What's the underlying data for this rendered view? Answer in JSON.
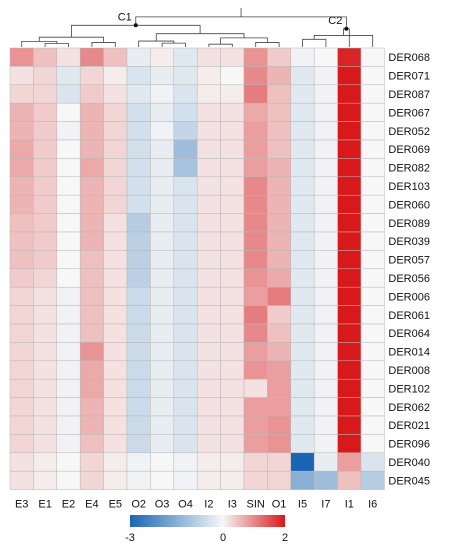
{
  "chart_data": {
    "type": "heatmap",
    "title": "",
    "columns": [
      "E3",
      "E1",
      "E2",
      "E4",
      "E5",
      "O2",
      "O3",
      "O4",
      "I2",
      "I3",
      "SIN",
      "O1",
      "I5",
      "I7",
      "I1",
      "I6"
    ],
    "rows": [
      "DER068",
      "DER071",
      "DER087",
      "DER067",
      "DER052",
      "DER069",
      "DER082",
      "DER103",
      "DER060",
      "DER089",
      "DER039",
      "DER057",
      "DER056",
      "DER006",
      "DER061",
      "DER064",
      "DER014",
      "DER008",
      "DER102",
      "DER062",
      "DER021",
      "DER096",
      "DER040",
      "DER045"
    ],
    "values": [
      [
        0.9,
        0.5,
        0.2,
        1.0,
        0.5,
        -0.2,
        0.1,
        -0.3,
        0.2,
        0.2,
        0.9,
        0.4,
        -0.1,
        0.0,
        1.9,
        0.0
      ],
      [
        0.2,
        0.3,
        -0.3,
        0.3,
        0.1,
        -0.4,
        -0.2,
        -0.3,
        0.1,
        0.0,
        1.0,
        0.6,
        -0.3,
        -0.1,
        2.3,
        0.0
      ],
      [
        0.3,
        0.3,
        -0.4,
        0.4,
        0.2,
        -0.3,
        -0.1,
        -0.4,
        0.1,
        0.1,
        1.1,
        0.5,
        -0.3,
        -0.1,
        2.4,
        0.0
      ],
      [
        0.6,
        0.4,
        0.0,
        0.6,
        0.3,
        -0.5,
        -0.2,
        -0.5,
        0.2,
        0.2,
        0.7,
        0.5,
        -0.3,
        -0.1,
        2.1,
        0.0
      ],
      [
        0.6,
        0.4,
        -0.1,
        0.6,
        0.3,
        -0.5,
        -0.1,
        -0.7,
        0.2,
        0.2,
        0.8,
        0.5,
        -0.3,
        -0.1,
        2.2,
        0.0
      ],
      [
        0.7,
        0.4,
        0.0,
        0.6,
        0.3,
        -0.5,
        -0.2,
        -1.2,
        0.2,
        0.2,
        0.8,
        0.5,
        -0.3,
        -0.1,
        2.2,
        0.0
      ],
      [
        0.7,
        0.4,
        0.0,
        0.7,
        0.3,
        -0.5,
        -0.2,
        -1.1,
        0.2,
        0.2,
        0.8,
        0.6,
        -0.3,
        -0.1,
        2.3,
        0.0
      ],
      [
        0.6,
        0.4,
        0.0,
        0.6,
        0.3,
        -0.5,
        -0.2,
        -0.4,
        0.2,
        0.2,
        1.0,
        0.6,
        -0.3,
        -0.1,
        2.4,
        0.0
      ],
      [
        0.6,
        0.4,
        0.0,
        0.6,
        0.3,
        -0.5,
        -0.2,
        -0.4,
        0.2,
        0.2,
        1.0,
        0.6,
        -0.3,
        -0.1,
        2.4,
        0.0
      ],
      [
        0.5,
        0.4,
        0.0,
        0.6,
        0.2,
        -0.9,
        -0.2,
        -0.4,
        0.2,
        0.2,
        1.0,
        0.6,
        -0.3,
        -0.1,
        2.6,
        0.0
      ],
      [
        0.5,
        0.4,
        0.0,
        0.6,
        0.2,
        -0.8,
        -0.2,
        -0.4,
        0.2,
        0.2,
        1.0,
        0.6,
        -0.3,
        -0.1,
        2.6,
        0.0
      ],
      [
        0.5,
        0.4,
        0.0,
        0.5,
        0.2,
        -0.8,
        -0.2,
        -0.4,
        0.2,
        0.2,
        1.0,
        0.6,
        -0.3,
        -0.1,
        2.6,
        0.0
      ],
      [
        0.4,
        0.3,
        0.0,
        0.5,
        0.2,
        -0.8,
        -0.2,
        -0.4,
        0.2,
        0.2,
        0.9,
        0.7,
        -0.3,
        -0.1,
        2.6,
        0.0
      ],
      [
        0.3,
        0.2,
        -0.1,
        0.5,
        0.2,
        -0.6,
        -0.2,
        -0.4,
        0.2,
        0.2,
        0.8,
        1.1,
        -0.3,
        -0.1,
        2.5,
        0.0
      ],
      [
        0.3,
        0.2,
        -0.1,
        0.5,
        0.2,
        -0.6,
        -0.2,
        -0.4,
        0.2,
        0.2,
        1.1,
        0.4,
        -0.3,
        -0.1,
        2.5,
        0.0
      ],
      [
        0.3,
        0.2,
        -0.1,
        0.5,
        0.2,
        -0.6,
        -0.2,
        -0.4,
        0.2,
        0.2,
        1.0,
        0.5,
        -0.3,
        -0.1,
        2.5,
        0.0
      ],
      [
        0.3,
        0.2,
        -0.1,
        0.9,
        0.2,
        -0.6,
        -0.2,
        -0.4,
        0.2,
        0.2,
        0.8,
        0.6,
        -0.3,
        -0.1,
        2.5,
        0.0
      ],
      [
        0.3,
        0.2,
        -0.1,
        0.7,
        0.2,
        -0.6,
        -0.2,
        -0.4,
        0.2,
        0.2,
        0.9,
        0.8,
        -0.3,
        -0.1,
        2.5,
        0.0
      ],
      [
        0.3,
        0.2,
        -0.1,
        0.7,
        0.2,
        -0.6,
        -0.2,
        -0.4,
        0.2,
        0.2,
        0.2,
        0.8,
        -0.3,
        -0.1,
        2.5,
        0.0
      ],
      [
        0.3,
        0.2,
        -0.1,
        0.6,
        0.2,
        -0.6,
        -0.2,
        -0.4,
        0.2,
        0.2,
        0.8,
        0.8,
        -0.3,
        -0.1,
        2.5,
        0.0
      ],
      [
        0.3,
        0.2,
        -0.1,
        0.6,
        0.2,
        -0.6,
        -0.2,
        -0.4,
        0.2,
        0.2,
        0.8,
        0.9,
        -0.3,
        -0.1,
        2.5,
        0.0
      ],
      [
        0.3,
        0.2,
        -0.1,
        0.5,
        0.2,
        -0.6,
        -0.2,
        -0.4,
        0.2,
        0.2,
        0.8,
        0.9,
        -0.3,
        -0.1,
        2.5,
        0.0
      ],
      [
        0.2,
        0.1,
        0.0,
        0.3,
        0.1,
        -0.1,
        0.0,
        -0.1,
        0.1,
        0.1,
        0.3,
        0.3,
        -3.0,
        -0.2,
        0.8,
        -0.4
      ],
      [
        0.2,
        0.1,
        0.0,
        0.3,
        0.1,
        -0.1,
        0.0,
        -0.1,
        0.1,
        0.1,
        0.3,
        0.3,
        -1.5,
        -1.2,
        0.5,
        -0.9
      ]
    ],
    "color_scale": {
      "min": -3,
      "mid": 0,
      "max": 2,
      "ticks": [
        -3,
        0,
        2
      ],
      "colors": [
        "#1a66b2",
        "#f7f7f7",
        "#d7191c"
      ]
    },
    "dendrogram": {
      "clusters": [
        "C1",
        "C2"
      ],
      "merges": [
        {
          "a": 1,
          "b": 2,
          "h": 0.1
        },
        {
          "a": 0,
          "b": 16,
          "h": 0.16
        },
        {
          "a": 3,
          "b": 4,
          "h": 0.13
        },
        {
          "a": 17,
          "b": 18,
          "h": 0.28
        },
        {
          "a": 6,
          "b": 7,
          "h": 0.11
        },
        {
          "a": 5,
          "b": 20,
          "h": 0.17
        },
        {
          "a": 8,
          "b": 9,
          "h": 0.08
        },
        {
          "a": 10,
          "b": 11,
          "h": 0.13
        },
        {
          "a": 22,
          "b": 23,
          "h": 0.26
        },
        {
          "a": 21,
          "b": 24,
          "h": 0.38
        },
        {
          "a": 19,
          "b": 25,
          "h": 0.62
        },
        {
          "a": 12,
          "b": 13,
          "h": 0.22
        },
        {
          "a": 27,
          "b": 15,
          "h": 0.33
        },
        {
          "a": 28,
          "b": 14,
          "h": 0.52
        },
        {
          "a": 26,
          "b": 29,
          "h": 0.86
        }
      ]
    }
  }
}
